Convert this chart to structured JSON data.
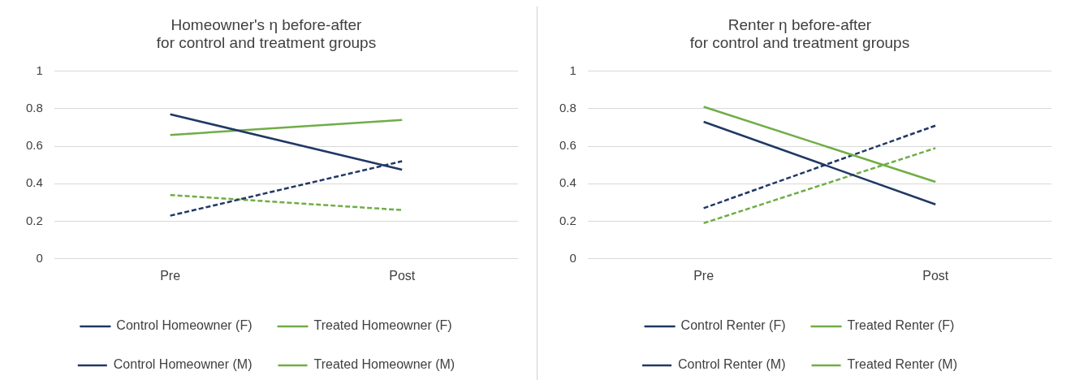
{
  "chart_data": [
    {
      "type": "line",
      "title": "Homeowner's η before-after\nfor control and treatment groups",
      "categories": [
        "Pre",
        "Post"
      ],
      "ylim": [
        0,
        1
      ],
      "yticks": [
        0,
        0.2,
        0.4,
        0.6,
        0.8,
        1
      ],
      "grid": "y",
      "legend": "bottom",
      "marker": "none",
      "series": [
        {
          "name": "Control Homeowner (F)",
          "color": "#203864",
          "line_style": "solid",
          "values": [
            0.77,
            0.475
          ]
        },
        {
          "name": "Treated Homeowner (F)",
          "color": "#70ad47",
          "line_style": "solid",
          "values": [
            0.66,
            0.74
          ]
        },
        {
          "name": "Control Homeowner (M)",
          "color": "#203864",
          "line_style": "dashed",
          "values": [
            0.23,
            0.52
          ]
        },
        {
          "name": "Treated Homeowner (M)",
          "color": "#70ad47",
          "line_style": "dashed",
          "values": [
            0.34,
            0.26
          ]
        }
      ]
    },
    {
      "type": "line",
      "title": "Renter η before-after\nfor control and treatment groups",
      "categories": [
        "Pre",
        "Post"
      ],
      "ylim": [
        0,
        1
      ],
      "yticks": [
        0,
        0.2,
        0.4,
        0.6,
        0.8,
        1
      ],
      "grid": "y",
      "legend": "bottom",
      "marker": "none",
      "series": [
        {
          "name": "Control Renter (F)",
          "color": "#203864",
          "line_style": "solid",
          "values": [
            0.73,
            0.29
          ]
        },
        {
          "name": "Treated Renter (F)",
          "color": "#70ad47",
          "line_style": "solid",
          "values": [
            0.81,
            0.41
          ]
        },
        {
          "name": "Control Renter (M)",
          "color": "#203864",
          "line_style": "dashed",
          "values": [
            0.27,
            0.71
          ]
        },
        {
          "name": "Treated Renter (M)",
          "color": "#70ad47",
          "line_style": "dashed",
          "values": [
            0.19,
            0.59
          ]
        }
      ]
    }
  ]
}
